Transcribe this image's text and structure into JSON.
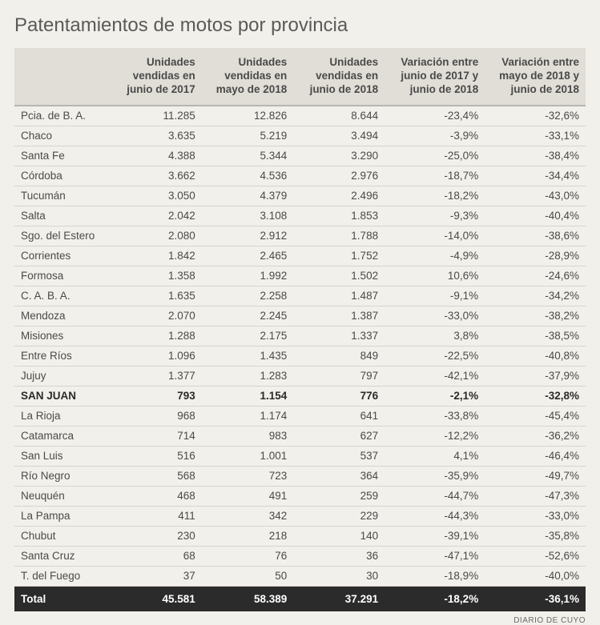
{
  "title": "Patentamientos de motos por provincia",
  "source": "DIARIO DE CUYO",
  "colors": {
    "page_bg": "#f2f0ea",
    "header_bg": "#e0ded6",
    "row_border": "#d6d4cc",
    "header_border": "#b8b6ae",
    "total_bg": "#2b2b2b",
    "total_text": "#ffffff",
    "text": "#4a4a4a",
    "title_text": "#5a5a5a"
  },
  "typography": {
    "title_fontsize": 24,
    "header_fontsize": 13.5,
    "body_fontsize": 13.5,
    "source_fontsize": 10,
    "font_family": "Arial"
  },
  "table": {
    "columns": [
      "",
      "Unidades vendidas en junio de 2017",
      "Unidades vendidas en mayo de 2018",
      "Unidades vendidas en junio de 2018",
      "Variación entre junio de 2017 y junio de 2018",
      "Variación entre mayo de 2018 y junio de 2018"
    ],
    "highlight_row_index": 14,
    "rows": [
      [
        "Pcia. de B. A.",
        "11.285",
        "12.826",
        "8.644",
        "-23,4%",
        "-32,6%"
      ],
      [
        "Chaco",
        "3.635",
        "5.219",
        "3.494",
        "-3,9%",
        "-33,1%"
      ],
      [
        "Santa Fe",
        "4.388",
        "5.344",
        "3.290",
        "-25,0%",
        "-38,4%"
      ],
      [
        "Córdoba",
        "3.662",
        "4.536",
        "2.976",
        "-18,7%",
        "-34,4%"
      ],
      [
        "Tucumán",
        "3.050",
        "4.379",
        "2.496",
        "-18,2%",
        "-43,0%"
      ],
      [
        "Salta",
        "2.042",
        "3.108",
        "1.853",
        "-9,3%",
        "-40,4%"
      ],
      [
        "Sgo. del Estero",
        "2.080",
        "2.912",
        "1.788",
        "-14,0%",
        "-38,6%"
      ],
      [
        "Corrientes",
        "1.842",
        "2.465",
        "1.752",
        "-4,9%",
        "-28,9%"
      ],
      [
        "Formosa",
        "1.358",
        "1.992",
        "1.502",
        "10,6%",
        "-24,6%"
      ],
      [
        "C. A. B. A.",
        "1.635",
        "2.258",
        "1.487",
        "-9,1%",
        "-34,2%"
      ],
      [
        "Mendoza",
        "2.070",
        "2.245",
        "1.387",
        "-33,0%",
        "-38,2%"
      ],
      [
        "Misiones",
        "1.288",
        "2.175",
        "1.337",
        "3,8%",
        "-38,5%"
      ],
      [
        "Entre Ríos",
        "1.096",
        "1.435",
        "849",
        "-22,5%",
        "-40,8%"
      ],
      [
        "Jujuy",
        "1.377",
        "1.283",
        "797",
        "-42,1%",
        "-37,9%"
      ],
      [
        "SAN JUAN",
        "793",
        "1.154",
        "776",
        "-2,1%",
        "-32,8%"
      ],
      [
        "La Rioja",
        "968",
        "1.174",
        "641",
        "-33,8%",
        "-45,4%"
      ],
      [
        "Catamarca",
        "714",
        "983",
        "627",
        "-12,2%",
        "-36,2%"
      ],
      [
        "San Luis",
        "516",
        "1.001",
        "537",
        "4,1%",
        "-46,4%"
      ],
      [
        "Río Negro",
        "568",
        "723",
        "364",
        "-35,9%",
        "-49,7%"
      ],
      [
        "Neuquén",
        "468",
        "491",
        "259",
        "-44,7%",
        "-47,3%"
      ],
      [
        "La Pampa",
        "411",
        "342",
        "229",
        "-44,3%",
        "-33,0%"
      ],
      [
        "Chubut",
        "230",
        "218",
        "140",
        "-39,1%",
        "-35,8%"
      ],
      [
        "Santa Cruz",
        "68",
        "76",
        "36",
        "-47,1%",
        "-52,6%"
      ],
      [
        "T. del Fuego",
        "37",
        "50",
        "30",
        "-18,9%",
        "-40,0%"
      ]
    ],
    "total": [
      "Total",
      "45.581",
      "58.389",
      "37.291",
      "-18,2%",
      "-36,1%"
    ]
  }
}
